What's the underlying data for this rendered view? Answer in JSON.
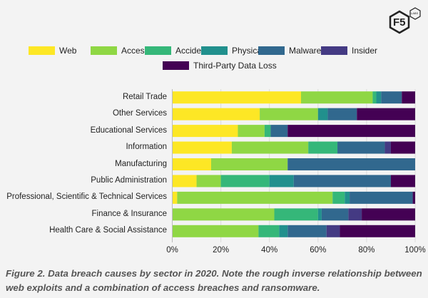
{
  "logo": {
    "text": "F5",
    "badge": "LABS"
  },
  "chart_data": {
    "type": "bar",
    "orientation": "horizontal",
    "stacked": true,
    "normalized": true,
    "categories": [
      "Retail Trade",
      "Other Services",
      "Educational Services",
      "Information",
      "Manufacturing",
      "Public Administration",
      "Professional, Scientific & Technical Services",
      "Finance & Insurance",
      "Health Care & Social Assistance"
    ],
    "series": [
      {
        "name": "Web",
        "color": "#fde725",
        "values": [
          53,
          36,
          27,
          24.5,
          16,
          10,
          2,
          0,
          0
        ]
      },
      {
        "name": "Access",
        "color": "#8fd744",
        "values": [
          29.5,
          24,
          11,
          31.5,
          31.5,
          10,
          64,
          42,
          35.5
        ]
      },
      {
        "name": "Accident",
        "color": "#35b779",
        "values": [
          1.5,
          0,
          2.5,
          12,
          0,
          20,
          5,
          18,
          8.5
        ]
      },
      {
        "name": "Physical",
        "color": "#21908d",
        "values": [
          2,
          4,
          0,
          0,
          0,
          10,
          2,
          1.5,
          3.5
        ]
      },
      {
        "name": "Malware",
        "color": "#31688e",
        "values": [
          8.5,
          12,
          7,
          19.5,
          52.5,
          40,
          26,
          11,
          16
        ]
      },
      {
        "name": "Insider",
        "color": "#443a83",
        "values": [
          0,
          0,
          0,
          2.5,
          0,
          0,
          0,
          5.5,
          5.5
        ]
      },
      {
        "name": "Third-Party Data Loss",
        "color": "#440154",
        "values": [
          5.5,
          24,
          52.5,
          10,
          0,
          10,
          1,
          22,
          31
        ]
      }
    ],
    "xlim": [
      0,
      100
    ],
    "xticks": [
      "0%",
      "20%",
      "40%",
      "60%",
      "80%",
      "100%"
    ],
    "grid": true,
    "legend": "top"
  },
  "caption": "Figure 2. Data breach causes by sector in 2020. Note the rough inverse relationship between web exploits and a combination of access breaches and ransomware."
}
